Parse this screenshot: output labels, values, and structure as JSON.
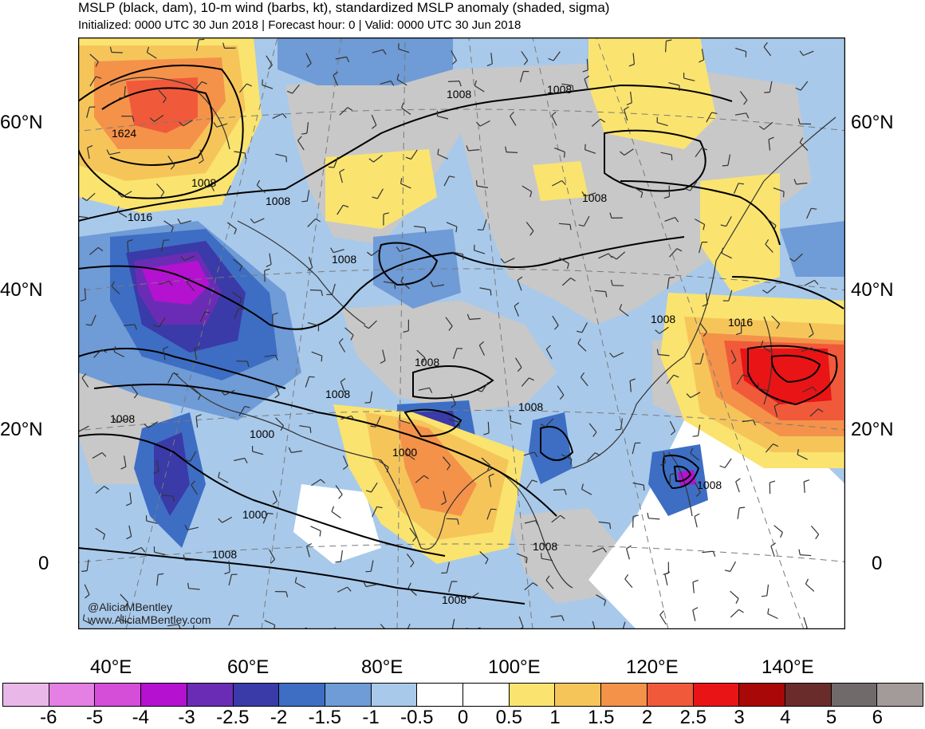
{
  "header": {
    "title": "MSLP (black, dam), 10-m wind (barbs, kt), standardized MSLP anomaly (shaded, sigma)",
    "subtitle": "Initialized: 0000 UTC 30 Jun 2018 | Forecast hour: 0 | Valid: 0000 UTC 30 Jun 2018"
  },
  "map": {
    "lat_labels": [
      "60°N",
      "40°N",
      "20°N",
      "0"
    ],
    "lon_labels": [
      "40°E",
      "60°E",
      "80°E",
      "100°E",
      "120°E",
      "140°E"
    ],
    "contour_labels": [
      "1008",
      "1008",
      "1624",
      "1008",
      "1016",
      "1008",
      "1008",
      "1008",
      "1008",
      "1016",
      "1008",
      "1008",
      "1008",
      "1008",
      "1000",
      "1000",
      "1000",
      "1008",
      "1008",
      "1008",
      "1008"
    ],
    "credits": [
      "@AliciaMBentley",
      "www.AliciaMBentley.com"
    ]
  },
  "colorbar": {
    "colors": [
      "#e9b8e8",
      "#e47fe3",
      "#d44ed8",
      "#b412d0",
      "#6b2cb5",
      "#3a3aa8",
      "#3d6ec4",
      "#6f9bd6",
      "#a8c9ea",
      "#ffffff",
      "#ffffff",
      "#fae46f",
      "#f6c55a",
      "#f4924a",
      "#f05a3a",
      "#e81416",
      "#a80808",
      "#6a2b2b",
      "#716a6a",
      "#a39a9a"
    ],
    "labels": [
      "-6",
      "-5",
      "-4",
      "-3",
      "-2.5",
      "-2",
      "-1.5",
      "-1",
      "-0.5",
      "0",
      "0.5",
      "1",
      "1.5",
      "2",
      "2.5",
      "3",
      "4",
      "5",
      "6"
    ]
  }
}
